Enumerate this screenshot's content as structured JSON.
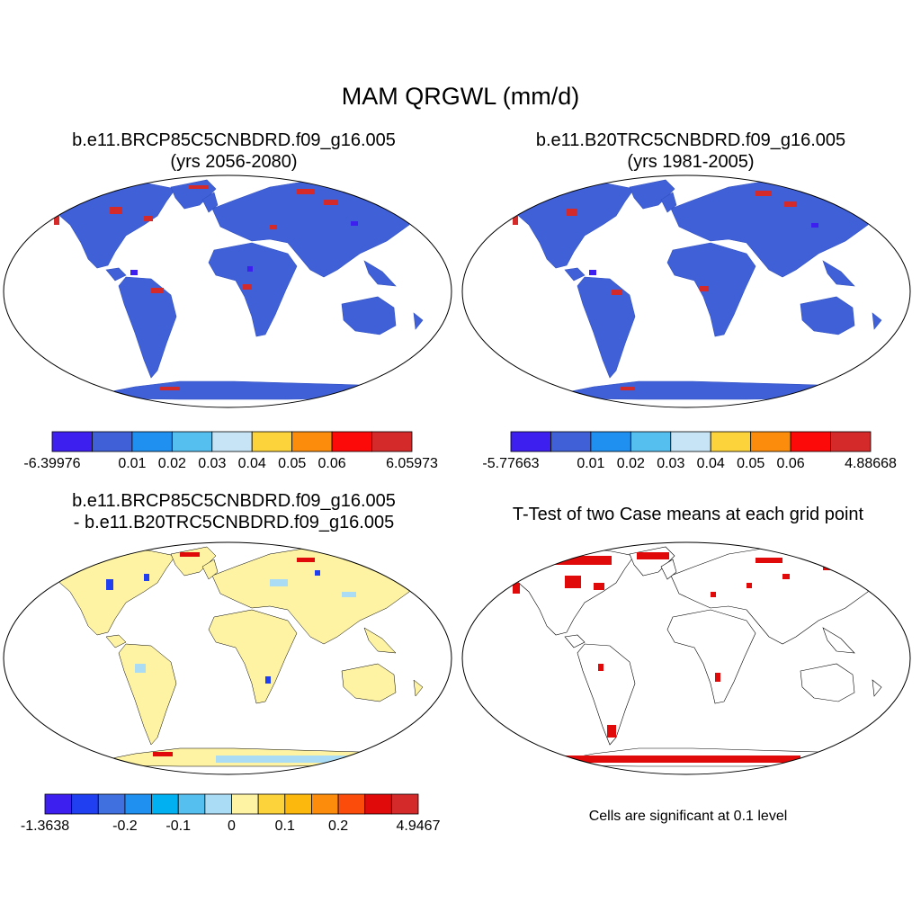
{
  "figure": {
    "title": "MAM QRGWL (mm/d)"
  },
  "panels": [
    {
      "id": "future",
      "title_line1": "b.e11.BRCP85C5CNBDRD.f09_g16.005",
      "title_line2": "(yrs 2056-2080)",
      "land_color": "#4060d8",
      "colorbar": {
        "colors": [
          "#3d1ff0",
          "#4060d8",
          "#1f8ff0",
          "#55bff0",
          "#c6e4f5",
          "#fcd33a",
          "#fc8c0c",
          "#fc0a0a",
          "#d42a2a"
        ],
        "labels": [
          "-6.39976",
          "0.01",
          "0.02",
          "0.03",
          "0.04",
          "0.05",
          "0.06",
          "6.05973"
        ]
      }
    },
    {
      "id": "historical",
      "title_line1": "b.e11.B20TRC5CNBDRD.f09_g16.005",
      "title_line2": "(yrs 1981-2005)",
      "land_color": "#4060d8",
      "colorbar": {
        "colors": [
          "#3d1ff0",
          "#4060d8",
          "#1f8ff0",
          "#55bff0",
          "#c6e4f5",
          "#fcd33a",
          "#fc8c0c",
          "#fc0a0a",
          "#d42a2a"
        ],
        "labels": [
          "-5.77663",
          "0.01",
          "0.02",
          "0.03",
          "0.04",
          "0.05",
          "0.06",
          "4.88668"
        ]
      }
    },
    {
      "id": "difference",
      "title_line1": "b.e11.BRCP85C5CNBDRD.f09_g16.005",
      "title_line2": "- b.e11.B20TRC5CNBDRD.f09_g16.005",
      "land_color": "#fdf3a3",
      "colorbar": {
        "colors": [
          "#3d1ff0",
          "#1f3ff0",
          "#4070e0",
          "#1f8ff0",
          "#00b0f0",
          "#55bff0",
          "#aadcf5",
          "#fdf3a3",
          "#fcd33a",
          "#fcb80c",
          "#fc8c0c",
          "#fc4c0c",
          "#e00a0a",
          "#d42a2a"
        ],
        "labels": [
          "-1.3638",
          "-0.2",
          "-0.1",
          "0",
          "0.1",
          "0.2",
          "4.9467"
        ]
      }
    },
    {
      "id": "ttest",
      "title_line1": "T-Test of two Case means at each grid point",
      "land_color": "#ffffff",
      "note": "Cells are significant at 0.1 level"
    }
  ]
}
